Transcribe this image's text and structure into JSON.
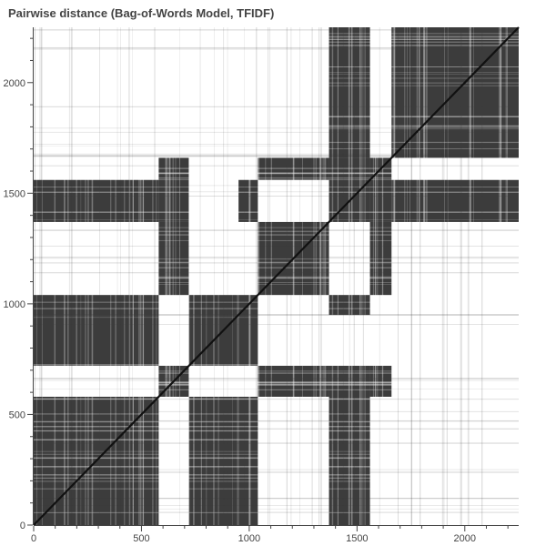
{
  "chart_data": {
    "type": "heatmap",
    "title": "Pairwise distance (Bag-of-Words Model, TFIDF)",
    "xlabel": "",
    "ylabel": "",
    "n": 2250,
    "xlim": [
      0,
      2250
    ],
    "ylim": [
      0,
      2250
    ],
    "x_ticks": [
      "0",
      "500",
      "1000",
      "1500",
      "2000"
    ],
    "y_ticks": [
      "0",
      "500",
      "1000",
      "1500",
      "2000"
    ],
    "grid": false,
    "colors": {
      "near": "#3c3c3c",
      "far": "#ffffff",
      "diagonal": "#111111",
      "axis": "#444444"
    },
    "clusters": [
      {
        "id": "A",
        "ranges": [
          [
            0,
            580
          ]
        ]
      },
      {
        "id": "B",
        "ranges": [
          [
            580,
            720
          ],
          [
            1560,
            1660
          ]
        ]
      },
      {
        "id": "C",
        "ranges": [
          [
            720,
            950
          ]
        ]
      },
      {
        "id": "D",
        "ranges": [
          [
            950,
            1040
          ]
        ]
      },
      {
        "id": "E",
        "ranges": [
          [
            1040,
            1370
          ]
        ]
      },
      {
        "id": "F",
        "ranges": [
          [
            1370,
            1560
          ]
        ]
      },
      {
        "id": "G",
        "ranges": [
          [
            1660,
            2250
          ]
        ]
      }
    ],
    "cluster_pairs_near": [
      [
        "A",
        "A"
      ],
      [
        "A",
        "C"
      ],
      [
        "A",
        "D"
      ],
      [
        "A",
        "F"
      ],
      [
        "B",
        "B"
      ],
      [
        "B",
        "E"
      ],
      [
        "B",
        "F"
      ],
      [
        "C",
        "C"
      ],
      [
        "C",
        "D"
      ],
      [
        "D",
        "D"
      ],
      [
        "D",
        "F"
      ],
      [
        "E",
        "E"
      ],
      [
        "F",
        "F"
      ],
      [
        "F",
        "G"
      ],
      [
        "G",
        "G"
      ]
    ]
  }
}
